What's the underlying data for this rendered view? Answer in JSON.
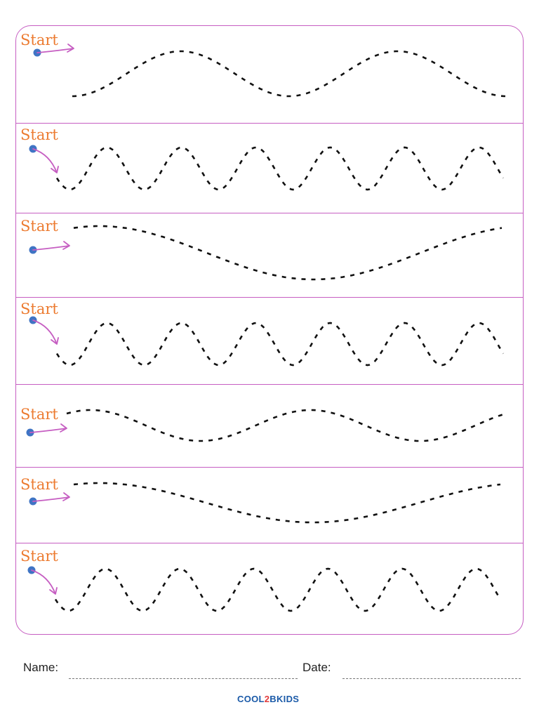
{
  "worksheet": {
    "start_label": "Start",
    "colors": {
      "border": "#c65ec2",
      "start_text": "#ec7a2f",
      "start_dot": "#3f74c4",
      "arrow": "#c65ec2",
      "trace_line": "#111111"
    },
    "rows": [
      {
        "name": "row-1",
        "pattern": "wave",
        "waves_across_row": 2
      },
      {
        "name": "row-2",
        "pattern": "wave",
        "waves_across_row": 6
      },
      {
        "name": "row-3",
        "pattern": "wave",
        "waves_across_row": 1
      },
      {
        "name": "row-4",
        "pattern": "wave",
        "waves_across_row": 6
      },
      {
        "name": "row-5",
        "pattern": "wave",
        "waves_across_row": 2
      },
      {
        "name": "row-6",
        "pattern": "wave",
        "waves_across_row": 1
      },
      {
        "name": "row-7",
        "pattern": "wave",
        "waves_across_row": 6
      }
    ]
  },
  "footer": {
    "name_label": "Name:",
    "date_label": "Date:",
    "logo": {
      "parts": [
        "COOL",
        "2",
        "BKIDS"
      ]
    }
  }
}
